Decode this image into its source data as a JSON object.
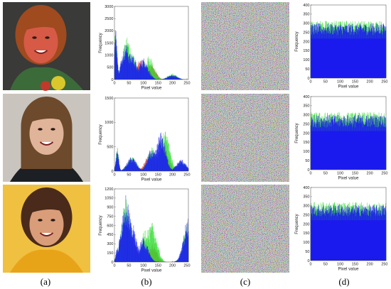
{
  "figure": {
    "panel_labels": [
      "(a)",
      "(b)",
      "(c)",
      "(d)"
    ],
    "rows": [
      {
        "photo": "woman-red-hair-portrait",
        "histogram_b": {
          "xlabel": "Pixel value",
          "ylabel": "Frequency"
        },
        "histogram_d": {
          "xlabel": "Pixel value",
          "ylabel": "Frequency"
        }
      },
      {
        "photo": "woman-long-hair-smiling-portrait",
        "histogram_b": {
          "xlabel": "Pixel value",
          "ylabel": "Frequency"
        },
        "histogram_d": {
          "xlabel": "Pixel value",
          "ylabel": "Frequency"
        }
      },
      {
        "photo": "woman-curly-hair-yellow-shirt-portrait",
        "histogram_b": {
          "xlabel": "Pixel value",
          "ylabel": "Frequency"
        },
        "histogram_d": {
          "xlabel": "Pixel value",
          "ylabel": "Frequency"
        }
      }
    ]
  },
  "colors": {
    "red": "#e0301e",
    "green": "#33dd33",
    "blue": "#1a1aee",
    "teal": "#3a8ec8"
  },
  "chart_data": [
    {
      "type": "bar",
      "panel": "(b) row 1",
      "xlabel": "Pixel value",
      "ylabel": "Frequency",
      "xlim": [
        0,
        255
      ],
      "ylim": [
        0,
        3000
      ],
      "xticks": [
        0,
        50,
        100,
        150,
        200,
        250
      ],
      "yticks": [
        0,
        500,
        1000,
        1500,
        2000,
        2500,
        3000
      ],
      "series": [
        {
          "channel": "red",
          "peaks": [
            [
              5,
              2550
            ],
            [
              40,
              1700
            ],
            [
              60,
              1150
            ],
            [
              90,
              1400
            ],
            [
              125,
              1100
            ],
            [
              200,
              300
            ]
          ]
        },
        {
          "channel": "green",
          "peaks": [
            [
              5,
              2300
            ],
            [
              45,
              1750
            ],
            [
              60,
              1050
            ],
            [
              120,
              1000
            ],
            [
              200,
              250
            ]
          ]
        },
        {
          "channel": "blue",
          "peaks": [
            [
              5,
              2100
            ],
            [
              40,
              1500
            ],
            [
              60,
              1100
            ],
            [
              100,
              900
            ],
            [
              200,
              200
            ]
          ]
        }
      ]
    },
    {
      "type": "bar",
      "panel": "(d) row 1",
      "xlabel": "Pixel value",
      "ylabel": "Frequency",
      "xlim": [
        0,
        255
      ],
      "ylim": [
        0,
        400
      ],
      "xticks": [
        0,
        50,
        100,
        150,
        200,
        250
      ],
      "yticks": [
        0,
        50,
        100,
        150,
        200,
        250,
        300,
        350,
        400
      ],
      "series": [
        {
          "channel": "all",
          "mean": 258,
          "range": [
            235,
            300
          ]
        }
      ]
    },
    {
      "type": "bar",
      "panel": "(b) row 2",
      "xlabel": "Pixel value",
      "ylabel": "Frequency",
      "xlim": [
        0,
        255
      ],
      "ylim": [
        0,
        1500
      ],
      "xticks": [
        0,
        50,
        100,
        150,
        200,
        250
      ],
      "yticks": [
        0,
        500,
        1000,
        1500
      ],
      "series": [
        {
          "channel": "red",
          "peaks": [
            [
              10,
              600
            ],
            [
              60,
              350
            ],
            [
              120,
              550
            ],
            [
              170,
              900
            ],
            [
              230,
              250
            ]
          ]
        },
        {
          "channel": "green",
          "peaks": [
            [
              10,
              500
            ],
            [
              60,
              300
            ],
            [
              130,
              500
            ],
            [
              175,
              850
            ],
            [
              230,
              200
            ]
          ]
        },
        {
          "channel": "blue",
          "peaks": [
            [
              10,
              450
            ],
            [
              60,
              300
            ],
            [
              130,
              450
            ],
            [
              160,
              800
            ],
            [
              230,
              250
            ]
          ]
        }
      ]
    },
    {
      "type": "bar",
      "panel": "(d) row 2",
      "xlabel": "Pixel value",
      "ylabel": "Frequency",
      "xlim": [
        0,
        255
      ],
      "ylim": [
        0,
        400
      ],
      "xticks": [
        0,
        50,
        100,
        150,
        200,
        250
      ],
      "yticks": [
        0,
        50,
        100,
        150,
        200,
        250,
        300,
        350,
        400
      ],
      "series": [
        {
          "channel": "all",
          "mean": 255,
          "range": [
            230,
            300
          ]
        }
      ]
    },
    {
      "type": "bar",
      "panel": "(b) row 3",
      "xlabel": "Pixel value",
      "ylabel": "Frequency",
      "xlim": [
        0,
        255
      ],
      "ylim": [
        0,
        1200
      ],
      "xticks": [
        0,
        50,
        100,
        150,
        200,
        250
      ],
      "yticks": [
        0,
        150,
        300,
        450,
        600,
        750,
        900,
        1050,
        1200
      ],
      "series": [
        {
          "channel": "red",
          "peaks": [
            [
              10,
              250
            ],
            [
              40,
              1150
            ],
            [
              60,
              700
            ],
            [
              130,
              500
            ],
            [
              255,
              800
            ]
          ]
        },
        {
          "channel": "green",
          "peaks": [
            [
              10,
              200
            ],
            [
              40,
              1050
            ],
            [
              110,
              600
            ],
            [
              130,
              650
            ],
            [
              255,
              700
            ]
          ]
        },
        {
          "channel": "blue",
          "peaks": [
            [
              10,
              250
            ],
            [
              40,
              1100
            ],
            [
              60,
              650
            ],
            [
              100,
              400
            ],
            [
              255,
              750
            ]
          ]
        }
      ]
    },
    {
      "type": "bar",
      "panel": "(d) row 3",
      "xlabel": "Pixel value",
      "ylabel": "Frequency",
      "xlim": [
        0,
        255
      ],
      "ylim": [
        0,
        400
      ],
      "xticks": [
        0,
        50,
        100,
        150,
        200,
        250
      ],
      "yticks": [
        0,
        50,
        100,
        150,
        200,
        250,
        300,
        350,
        400
      ],
      "series": [
        {
          "channel": "all",
          "mean": 265,
          "range": [
            240,
            305
          ]
        }
      ]
    }
  ]
}
